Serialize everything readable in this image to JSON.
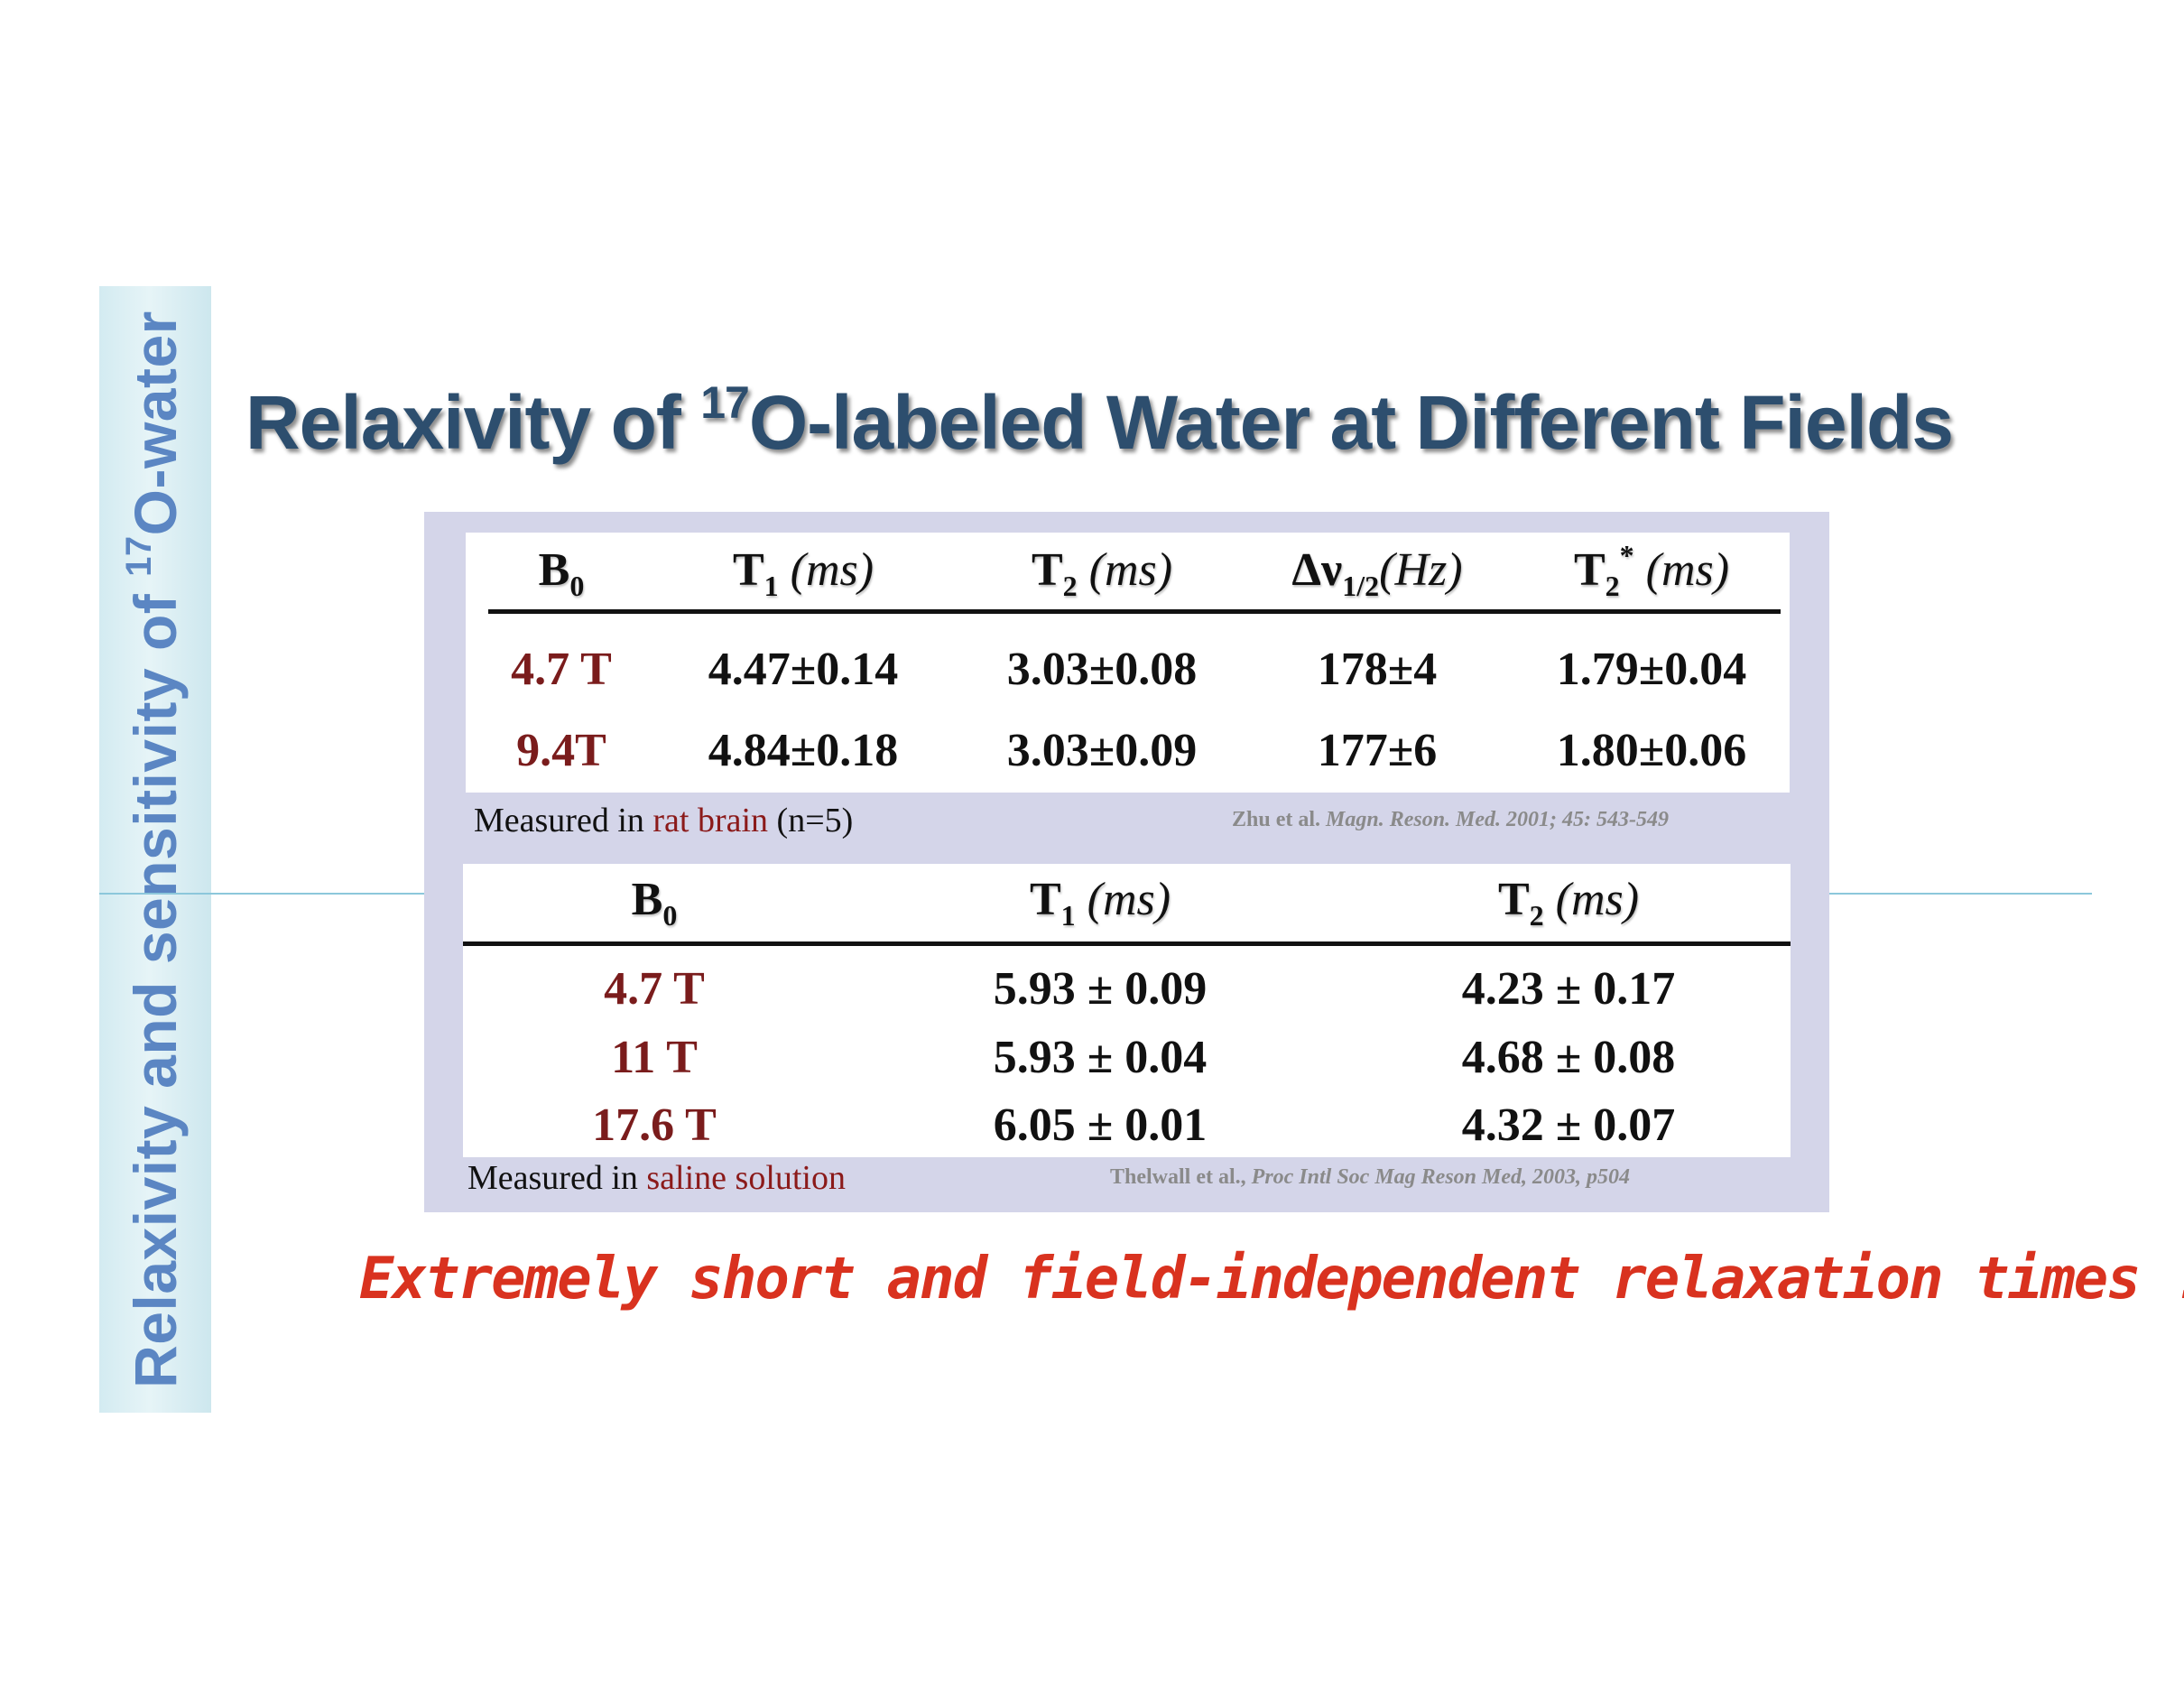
{
  "side_label": {
    "prefix": "Relaxivity and sensitivity of ",
    "sup": "17",
    "suffix": "O-water"
  },
  "title": {
    "prefix": "Relaxivity of ",
    "sup": "17",
    "suffix": "O-labeled Water at Different Fields"
  },
  "table1": {
    "headers": [
      {
        "main": "B",
        "sub": "0",
        "unit": ""
      },
      {
        "main": "T",
        "sub": "1",
        "unit": " (ms)"
      },
      {
        "main": "T",
        "sub": "2",
        "unit": " (ms)"
      },
      {
        "main": "Δν",
        "sub": "1/2",
        "unit": "(Hz)"
      },
      {
        "main": "T",
        "sub": "2",
        "sup": "*",
        "unit": " (ms)"
      }
    ],
    "rows": [
      [
        "4.7 T",
        "4.47±0.14",
        "3.03±0.08",
        "178±4",
        "1.79±0.04"
      ],
      [
        "9.4T",
        "4.84±0.18",
        "3.03±0.09",
        "177±6",
        "1.80±0.06"
      ]
    ],
    "note": {
      "prefix": "Measured in ",
      "highlight": "rat brain",
      "suffix": " (n=5)"
    },
    "citation": {
      "authors": "Zhu et al. ",
      "source": "Magn. Reson. Med.  2001; 45: 543-549"
    }
  },
  "table2": {
    "headers": [
      {
        "main": "B",
        "sub": "0",
        "unit": ""
      },
      {
        "main": "T",
        "sub": "1",
        "unit": " (ms)"
      },
      {
        "main": "T",
        "sub": "2",
        "unit": " (ms)"
      }
    ],
    "rows": [
      [
        "4.7 T",
        "5.93 ± 0.09",
        "4.23 ± 0.17"
      ],
      [
        "11 T",
        "5.93 ± 0.04",
        "4.68 ± 0.08"
      ],
      [
        "17.6 T",
        "6.05 ± 0.01",
        "4.32 ± 0.07"
      ]
    ],
    "note": {
      "prefix": "Measured in ",
      "highlight": "saline solution",
      "suffix": ""
    },
    "citation": {
      "authors": "Thelwall et al., ",
      "source": "Proc Intl Soc Mag Reson Med, 2003, p504"
    }
  },
  "tagline": "Extremely short and field-independent relaxation times !",
  "colors": {
    "title": "#2d4e6e",
    "side_label": "#5b86c3",
    "field_values": "#7a1c1c",
    "tagline": "#d9321f",
    "panel": "#d4d5e9"
  }
}
